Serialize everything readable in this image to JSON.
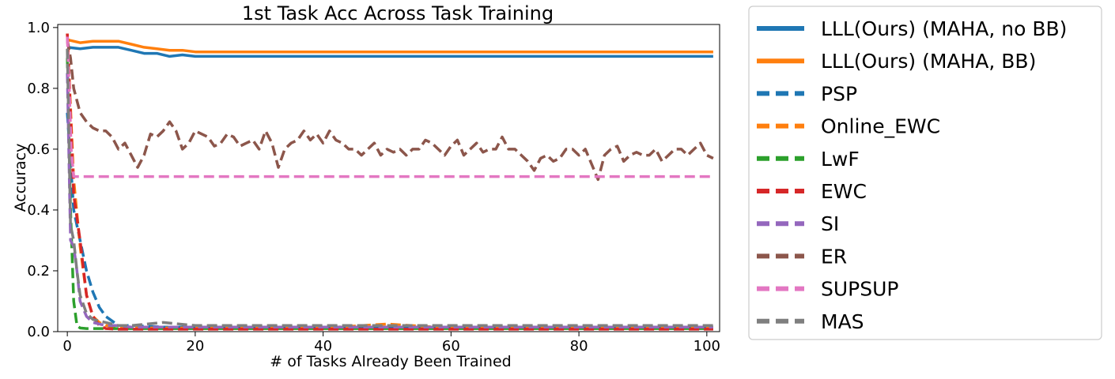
{
  "chart_data": {
    "type": "line",
    "title": "1st Task Acc Across Task Training",
    "xlabel": "# of Tasks Already Been Trained",
    "ylabel": "Accuracy",
    "xlim": [
      -1.5,
      102
    ],
    "ylim": [
      0,
      1.01
    ],
    "xticks": [
      0,
      20,
      40,
      60,
      80,
      100
    ],
    "yticks": [
      0.0,
      0.2,
      0.4,
      0.6,
      0.8,
      1.0
    ],
    "xtick_labels": [
      "0",
      "20",
      "40",
      "60",
      "80",
      "100"
    ],
    "ytick_labels": [
      "0.0",
      "0.2",
      "0.4",
      "0.6",
      "0.8",
      "1.0"
    ],
    "grid": false,
    "legend_position": "outside-right",
    "series": [
      {
        "name": "LLL(Ours) (MAHA, no BB)",
        "color": "#1f77b4",
        "dash": "solid",
        "x": [
          0,
          2,
          4,
          6,
          8,
          10,
          12,
          14,
          16,
          18,
          20,
          25,
          30,
          35,
          40,
          45,
          50,
          55,
          60,
          65,
          70,
          75,
          80,
          85,
          90,
          95,
          100,
          101
        ],
        "y": [
          0.935,
          0.93,
          0.935,
          0.935,
          0.935,
          0.925,
          0.915,
          0.915,
          0.905,
          0.91,
          0.905,
          0.905,
          0.905,
          0.905,
          0.905,
          0.905,
          0.905,
          0.905,
          0.905,
          0.905,
          0.905,
          0.905,
          0.905,
          0.905,
          0.905,
          0.905,
          0.905,
          0.905
        ]
      },
      {
        "name": "LLL(Ours) (MAHA, BB)",
        "color": "#ff7f0e",
        "dash": "solid",
        "x": [
          0,
          1,
          2,
          4,
          6,
          8,
          10,
          12,
          14,
          16,
          18,
          20,
          25,
          30,
          35,
          40,
          45,
          50,
          55,
          60,
          65,
          70,
          75,
          80,
          85,
          90,
          95,
          100,
          101
        ],
        "y": [
          0.96,
          0.955,
          0.95,
          0.955,
          0.955,
          0.955,
          0.945,
          0.935,
          0.93,
          0.925,
          0.925,
          0.92,
          0.92,
          0.92,
          0.92,
          0.92,
          0.92,
          0.92,
          0.92,
          0.92,
          0.92,
          0.92,
          0.92,
          0.92,
          0.92,
          0.92,
          0.92,
          0.92,
          0.92
        ]
      },
      {
        "name": "PSP",
        "color": "#1f77b4",
        "dash": "dashed",
        "x": [
          0,
          1,
          2,
          3,
          4,
          5,
          6,
          8,
          10,
          15,
          20,
          30,
          40,
          50,
          60,
          70,
          80,
          90,
          100,
          101
        ],
        "y": [
          0.72,
          0.4,
          0.3,
          0.2,
          0.13,
          0.08,
          0.05,
          0.02,
          0.02,
          0.015,
          0.015,
          0.015,
          0.015,
          0.015,
          0.015,
          0.015,
          0.015,
          0.015,
          0.015,
          0.015
        ]
      },
      {
        "name": "Online_EWC",
        "color": "#ff7f0e",
        "dash": "dashed",
        "x": [
          0,
          1,
          2,
          3,
          4,
          5,
          6,
          8,
          10,
          20,
          30,
          40,
          50,
          60,
          70,
          80,
          90,
          100,
          101
        ],
        "y": [
          0.98,
          0.5,
          0.28,
          0.12,
          0.05,
          0.03,
          0.02,
          0.015,
          0.012,
          0.012,
          0.012,
          0.012,
          0.025,
          0.012,
          0.012,
          0.012,
          0.012,
          0.012,
          0.012
        ]
      },
      {
        "name": "LwF",
        "color": "#2ca02c",
        "dash": "dashed",
        "x": [
          0,
          0.5,
          1,
          1.5,
          2,
          3,
          4,
          6,
          10,
          20,
          30,
          40,
          50,
          60,
          70,
          80,
          90,
          100,
          101
        ],
        "y": [
          0.9,
          0.4,
          0.1,
          0.02,
          0.012,
          0.01,
          0.01,
          0.01,
          0.01,
          0.01,
          0.01,
          0.01,
          0.01,
          0.01,
          0.01,
          0.01,
          0.01,
          0.01,
          0.01
        ]
      },
      {
        "name": "EWC",
        "color": "#d62728",
        "dash": "dashed",
        "x": [
          0,
          1,
          2,
          3,
          4,
          5,
          6,
          8,
          10,
          20,
          30,
          40,
          50,
          60,
          70,
          80,
          90,
          100,
          101
        ],
        "y": [
          0.98,
          0.45,
          0.3,
          0.12,
          0.05,
          0.02,
          0.01,
          0.008,
          0.008,
          0.008,
          0.008,
          0.008,
          0.008,
          0.008,
          0.008,
          0.008,
          0.008,
          0.008,
          0.008
        ]
      },
      {
        "name": "SI",
        "color": "#9467bd",
        "dash": "dashed",
        "x": [
          0,
          0.5,
          1,
          1.5,
          2,
          3,
          4,
          6,
          8,
          10,
          20,
          30,
          40,
          50,
          60,
          70,
          80,
          90,
          100,
          101
        ],
        "y": [
          0.85,
          0.3,
          0.28,
          0.2,
          0.1,
          0.05,
          0.03,
          0.02,
          0.02,
          0.015,
          0.015,
          0.015,
          0.015,
          0.015,
          0.015,
          0.015,
          0.015,
          0.015,
          0.015,
          0.015
        ]
      },
      {
        "name": "ER",
        "color": "#8c564b",
        "dash": "dashed",
        "x": [
          0,
          0.5,
          1,
          2,
          3,
          4,
          5,
          6,
          7,
          8,
          9,
          10,
          11,
          12,
          13,
          14,
          15,
          16,
          17,
          18,
          19,
          20,
          21,
          22,
          23,
          24,
          25,
          26,
          27,
          28,
          29,
          30,
          31,
          32,
          33,
          34,
          35,
          36,
          37,
          38,
          39,
          40,
          41,
          42,
          43,
          44,
          45,
          46,
          47,
          48,
          49,
          50,
          51,
          52,
          53,
          54,
          55,
          56,
          57,
          58,
          59,
          60,
          61,
          62,
          63,
          64,
          65,
          66,
          67,
          68,
          69,
          70,
          71,
          72,
          73,
          74,
          75,
          76,
          77,
          78,
          79,
          80,
          81,
          82,
          83,
          84,
          85,
          86,
          87,
          88,
          89,
          90,
          91,
          92,
          93,
          94,
          95,
          96,
          97,
          98,
          99,
          100,
          101
        ],
        "y": [
          0.96,
          0.9,
          0.8,
          0.72,
          0.69,
          0.67,
          0.66,
          0.66,
          0.64,
          0.6,
          0.62,
          0.58,
          0.54,
          0.58,
          0.65,
          0.64,
          0.66,
          0.69,
          0.66,
          0.6,
          0.62,
          0.66,
          0.65,
          0.64,
          0.61,
          0.62,
          0.65,
          0.64,
          0.61,
          0.62,
          0.63,
          0.6,
          0.66,
          0.62,
          0.54,
          0.6,
          0.62,
          0.63,
          0.66,
          0.63,
          0.65,
          0.62,
          0.66,
          0.63,
          0.62,
          0.6,
          0.6,
          0.58,
          0.6,
          0.62,
          0.58,
          0.6,
          0.59,
          0.6,
          0.58,
          0.6,
          0.6,
          0.63,
          0.62,
          0.6,
          0.58,
          0.61,
          0.63,
          0.58,
          0.6,
          0.62,
          0.59,
          0.6,
          0.6,
          0.64,
          0.6,
          0.6,
          0.58,
          0.56,
          0.53,
          0.57,
          0.58,
          0.56,
          0.57,
          0.6,
          0.6,
          0.58,
          0.6,
          0.55,
          0.5,
          0.58,
          0.6,
          0.61,
          0.56,
          0.58,
          0.59,
          0.58,
          0.58,
          0.6,
          0.56,
          0.58,
          0.6,
          0.6,
          0.58,
          0.6,
          0.62,
          0.58,
          0.57
        ]
      },
      {
        "name": "SUPSUP",
        "color": "#e377c2",
        "dash": "dashed",
        "x": [
          0,
          0.3,
          0.6,
          1,
          2,
          10,
          20,
          30,
          40,
          50,
          60,
          70,
          80,
          90,
          100,
          101
        ],
        "y": [
          0.97,
          0.8,
          0.6,
          0.51,
          0.51,
          0.51,
          0.51,
          0.51,
          0.51,
          0.51,
          0.51,
          0.51,
          0.51,
          0.51,
          0.51,
          0.51
        ]
      },
      {
        "name": "MAS",
        "color": "#7f7f7f",
        "dash": "dashed",
        "x": [
          0,
          0.5,
          1,
          1.5,
          2,
          3,
          4,
          6,
          8,
          10,
          15,
          20,
          30,
          40,
          50,
          60,
          70,
          80,
          90,
          100,
          101
        ],
        "y": [
          0.93,
          0.35,
          0.3,
          0.2,
          0.12,
          0.06,
          0.04,
          0.03,
          0.02,
          0.02,
          0.03,
          0.02,
          0.02,
          0.02,
          0.02,
          0.02,
          0.02,
          0.02,
          0.02,
          0.02,
          0.02
        ]
      }
    ]
  }
}
